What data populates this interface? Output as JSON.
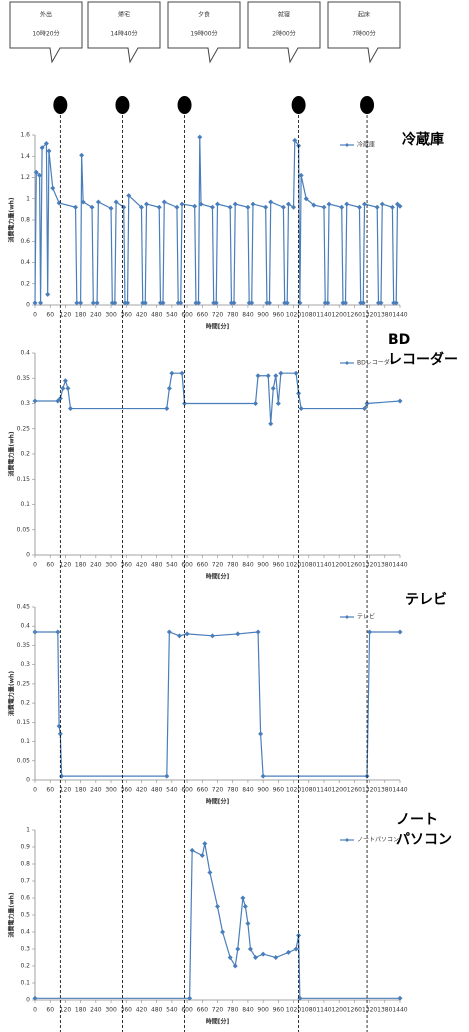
{
  "events": [
    {
      "label": "外出",
      "time": "10時20分",
      "x": 100
    },
    {
      "label": "帰宅",
      "time": "14時40分",
      "x": 345
    },
    {
      "label": "夕食",
      "time": "19時00分",
      "x": 590
    },
    {
      "label": "就寝",
      "time": "2時00分",
      "x": 1040
    },
    {
      "label": "起床",
      "time": "7時00分",
      "x": 1310
    }
  ],
  "chart_data": [
    {
      "type": "line",
      "title": "冷蔵庫",
      "xlabel": "時間[分]",
      "ylabel": "消費電力量(wh)",
      "legend": "upper right",
      "x": [
        0,
        5,
        18,
        22,
        28,
        45,
        50,
        55,
        70,
        95,
        160,
        165,
        180,
        184,
        190,
        225,
        230,
        245,
        250,
        300,
        305,
        315,
        320,
        350,
        355,
        365,
        370,
        420,
        425,
        435,
        440,
        490,
        495,
        505,
        510,
        560,
        565,
        575,
        580,
        630,
        635,
        645,
        650,
        655,
        700,
        705,
        715,
        720,
        770,
        775,
        785,
        790,
        840,
        845,
        855,
        860,
        910,
        915,
        925,
        930,
        980,
        985,
        995,
        1000,
        1020,
        1025,
        1040,
        1045,
        1050,
        1070,
        1100,
        1140,
        1145,
        1155,
        1160,
        1210,
        1215,
        1225,
        1230,
        1280,
        1285,
        1295,
        1300,
        1350,
        1355,
        1365,
        1370,
        1410,
        1415,
        1425,
        1430,
        1440
      ],
      "series": [
        {
          "name": "冷蔵庫",
          "color": "#4a7ebb",
          "values": [
            0.02,
            1.25,
            1.22,
            0.02,
            1.48,
            1.52,
            0.1,
            1.45,
            1.1,
            0.96,
            0.92,
            0.02,
            0.02,
            1.41,
            0.97,
            0.92,
            0.02,
            0.02,
            0.97,
            0.91,
            0.02,
            0.02,
            0.97,
            0.92,
            0.02,
            0.02,
            1.03,
            0.92,
            0.02,
            0.02,
            0.95,
            0.92,
            0.02,
            0.02,
            0.97,
            0.92,
            0.02,
            0.02,
            0.95,
            0.93,
            0.02,
            0.02,
            1.58,
            0.95,
            0.92,
            0.02,
            0.02,
            0.95,
            0.92,
            0.02,
            0.02,
            0.95,
            0.92,
            0.02,
            0.02,
            0.95,
            0.92,
            0.02,
            0.02,
            0.97,
            0.92,
            0.02,
            0.02,
            0.95,
            0.92,
            1.55,
            1.5,
            0.02,
            1.22,
            1.0,
            0.94,
            0.92,
            0.02,
            0.02,
            0.95,
            0.92,
            0.02,
            0.02,
            0.95,
            0.92,
            0.02,
            0.02,
            0.95,
            0.92,
            0.02,
            0.02,
            0.95,
            0.92,
            0.02,
            0.02,
            0.95,
            0.93
          ]
        }
      ],
      "xlim": [
        0,
        1440
      ],
      "xticks": [
        0,
        60,
        120,
        180,
        240,
        300,
        360,
        420,
        480,
        540,
        600,
        660,
        720,
        780,
        840,
        900,
        960,
        1020,
        1080,
        1140,
        1200,
        1260,
        1320,
        1380,
        1440
      ],
      "ylim": [
        0,
        1.6
      ],
      "yticks": [
        0,
        0.2,
        0.4,
        0.6,
        0.8,
        1,
        1.2,
        1.4,
        1.6
      ]
    },
    {
      "type": "line",
      "title": "BD\nレコーダー",
      "xlabel": "時間[分]",
      "ylabel": "消費電力量(wh)",
      "legend": "upper right",
      "x": [
        0,
        90,
        100,
        110,
        120,
        130,
        140,
        520,
        530,
        540,
        580,
        590,
        870,
        880,
        920,
        930,
        940,
        950,
        960,
        970,
        1030,
        1040,
        1050,
        1300,
        1310,
        1440
      ],
      "series": [
        {
          "name": "BDレコーダー",
          "color": "#4a7ebb",
          "values": [
            0.305,
            0.305,
            0.31,
            0.33,
            0.345,
            0.33,
            0.29,
            0.29,
            0.33,
            0.36,
            0.36,
            0.3,
            0.3,
            0.355,
            0.355,
            0.26,
            0.33,
            0.355,
            0.3,
            0.36,
            0.36,
            0.32,
            0.29,
            0.29,
            0.3,
            0.305
          ]
        }
      ],
      "xlim": [
        0,
        1440
      ],
      "xticks": [
        0,
        60,
        120,
        180,
        240,
        300,
        360,
        420,
        480,
        540,
        600,
        660,
        720,
        780,
        840,
        900,
        960,
        1020,
        1080,
        1140,
        1200,
        1260,
        1320,
        1380,
        1440
      ],
      "ylim": [
        0,
        0.4
      ],
      "yticks": [
        0,
        0.05,
        0.1,
        0.15,
        0.2,
        0.25,
        0.3,
        0.35,
        0.4
      ]
    },
    {
      "type": "line",
      "title": "テレビ",
      "xlabel": "時間[分]",
      "ylabel": "消費電力量(wh)",
      "legend": "upper right",
      "x": [
        0,
        90,
        95,
        100,
        105,
        520,
        530,
        570,
        600,
        700,
        800,
        880,
        890,
        900,
        1310,
        1320,
        1440
      ],
      "series": [
        {
          "name": "テレビ",
          "color": "#4a7ebb",
          "values": [
            0.385,
            0.385,
            0.14,
            0.12,
            0.01,
            0.01,
            0.385,
            0.375,
            0.38,
            0.375,
            0.38,
            0.385,
            0.12,
            0.01,
            0.01,
            0.385,
            0.385
          ]
        }
      ],
      "xlim": [
        0,
        1440
      ],
      "xticks": [
        0,
        60,
        120,
        180,
        240,
        300,
        360,
        420,
        480,
        540,
        600,
        660,
        720,
        780,
        840,
        900,
        960,
        1020,
        1080,
        1140,
        1200,
        1260,
        1320,
        1380,
        1440
      ],
      "ylim": [
        0,
        0.45
      ],
      "yticks": [
        0,
        0.05,
        0.1,
        0.15,
        0.2,
        0.25,
        0.3,
        0.35,
        0.4,
        0.45
      ]
    },
    {
      "type": "line",
      "title": "ノート\nパソコン",
      "xlabel": "時間[分]",
      "ylabel": "消費電力量(wh)",
      "legend": "upper right",
      "x": [
        0,
        610,
        620,
        660,
        670,
        690,
        720,
        740,
        770,
        790,
        800,
        820,
        830,
        840,
        850,
        870,
        900,
        950,
        1000,
        1030,
        1040,
        1045,
        1440
      ],
      "series": [
        {
          "name": "ノートパソコン",
          "color": "#4a7ebb",
          "values": [
            0.01,
            0.01,
            0.88,
            0.85,
            0.92,
            0.75,
            0.55,
            0.4,
            0.25,
            0.2,
            0.3,
            0.6,
            0.55,
            0.45,
            0.3,
            0.25,
            0.27,
            0.25,
            0.28,
            0.3,
            0.38,
            0.01,
            0.01
          ]
        }
      ],
      "xlim": [
        0,
        1440
      ],
      "xticks": [
        0,
        60,
        120,
        180,
        240,
        300,
        360,
        420,
        480,
        540,
        600,
        660,
        720,
        780,
        840,
        900,
        960,
        1020,
        1080,
        1140,
        1200,
        1260,
        1320,
        1380,
        1440
      ],
      "ylim": [
        0,
        1
      ],
      "yticks": [
        0,
        0.1,
        0.2,
        0.3,
        0.4,
        0.5,
        0.6,
        0.7,
        0.8,
        0.9,
        1
      ]
    }
  ]
}
